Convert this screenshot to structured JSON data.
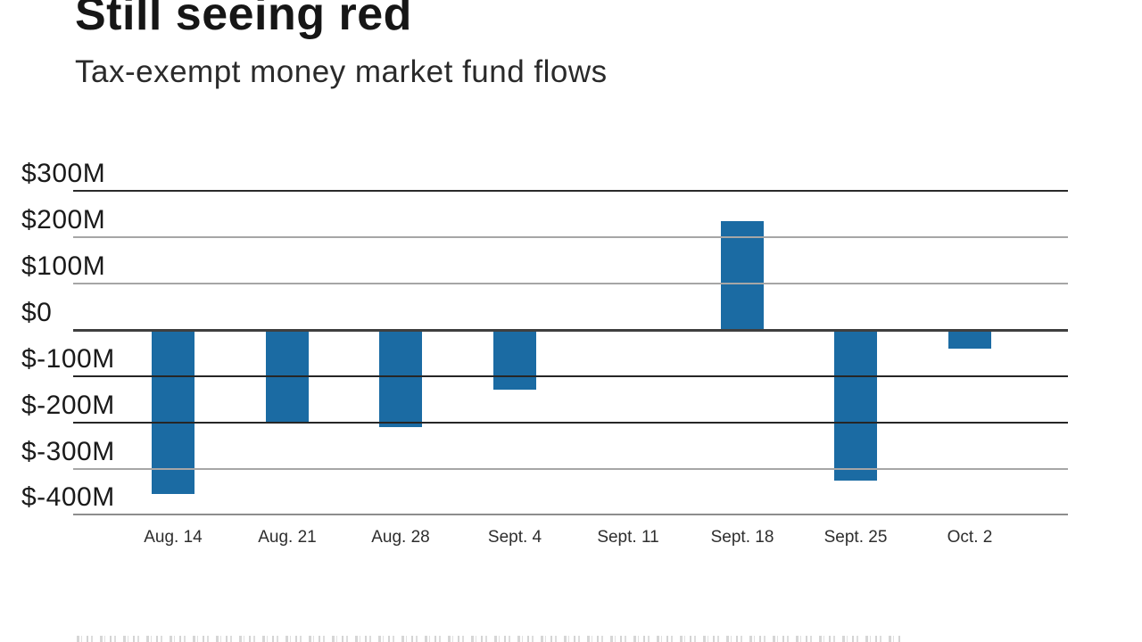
{
  "header": {
    "title": "Still seeing red",
    "subtitle": "Tax-exempt money market fund flows"
  },
  "chart_data": {
    "type": "bar",
    "title": "Still seeing red",
    "subtitle": "Tax-exempt money market fund flows",
    "categories": [
      "Aug. 14",
      "Aug. 21",
      "Aug. 28",
      "Sept. 4",
      "Sept. 11",
      "Sept. 18",
      "Sept. 25",
      "Oct. 2"
    ],
    "values": [
      -355,
      -200,
      -210,
      -130,
      0,
      235,
      -325,
      -40
    ],
    "unit": "millions of dollars",
    "bar_color": "#1b6ba3",
    "ylim": [
      -400,
      300
    ],
    "grid": true,
    "legend": false,
    "y_ticks": [
      {
        "value": 300,
        "label": "$300M",
        "line_color": "#2a2a2a"
      },
      {
        "value": 200,
        "label": "$200M",
        "line_color": "#a6a6a6"
      },
      {
        "value": 100,
        "label": "$100M",
        "line_color": "#a6a6a6"
      },
      {
        "value": 0,
        "label": "$0",
        "line_color": "#3f3f3f"
      },
      {
        "value": -100,
        "label": "$-100M",
        "line_color": "#262626"
      },
      {
        "value": -200,
        "label": "$-200M",
        "line_color": "#262626"
      },
      {
        "value": -300,
        "label": "$-300M",
        "line_color": "#a6a6a6"
      },
      {
        "value": -400,
        "label": "$-400M",
        "line_color": "#8d8d8d"
      }
    ]
  }
}
